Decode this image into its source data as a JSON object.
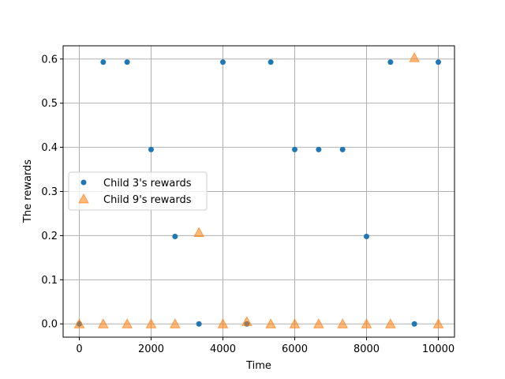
{
  "chart_data": {
    "type": "scatter",
    "xlabel": "Time",
    "ylabel": "The rewards",
    "xlim": [
      -450,
      10450
    ],
    "ylim": [
      -0.03,
      0.63
    ],
    "xticks": [
      0,
      2000,
      4000,
      6000,
      8000,
      10000
    ],
    "xtick_labels": [
      "0",
      "2000",
      "4000",
      "6000",
      "8000",
      "10000"
    ],
    "yticks": [
      0.0,
      0.1,
      0.2,
      0.3,
      0.4,
      0.5,
      0.6
    ],
    "ytick_labels": [
      "0.0",
      "0.1",
      "0.2",
      "0.3",
      "0.4",
      "0.5",
      "0.6"
    ],
    "grid": true,
    "legend_position": "center-left",
    "series": [
      {
        "name": "Child 3's rewards",
        "marker": "circle",
        "color": "#1f77b4",
        "points": [
          [
            0,
            0.0
          ],
          [
            667,
            0.593
          ],
          [
            1333,
            0.593
          ],
          [
            2000,
            0.395
          ],
          [
            2667,
            0.198
          ],
          [
            3333,
            0.0
          ],
          [
            4000,
            0.593
          ],
          [
            4667,
            0.0
          ],
          [
            5333,
            0.593
          ],
          [
            6000,
            0.395
          ],
          [
            6667,
            0.395
          ],
          [
            7333,
            0.395
          ],
          [
            8000,
            0.198
          ],
          [
            8667,
            0.593
          ],
          [
            9333,
            0.0
          ],
          [
            10000,
            0.593
          ]
        ]
      },
      {
        "name": "Child 9's rewards",
        "marker": "triangle",
        "color": "#ff7f0e",
        "points": [
          [
            0,
            0.0
          ],
          [
            667,
            0.0
          ],
          [
            1333,
            0.0
          ],
          [
            2000,
            0.0
          ],
          [
            2667,
            0.0
          ],
          [
            3333,
            0.207
          ],
          [
            4000,
            0.0
          ],
          [
            4667,
            0.005
          ],
          [
            5333,
            0.0
          ],
          [
            6000,
            0.0
          ],
          [
            6667,
            0.0
          ],
          [
            7333,
            0.0
          ],
          [
            8000,
            0.0
          ],
          [
            8667,
            0.0
          ],
          [
            9333,
            0.603
          ],
          [
            10000,
            0.0
          ]
        ]
      }
    ]
  }
}
